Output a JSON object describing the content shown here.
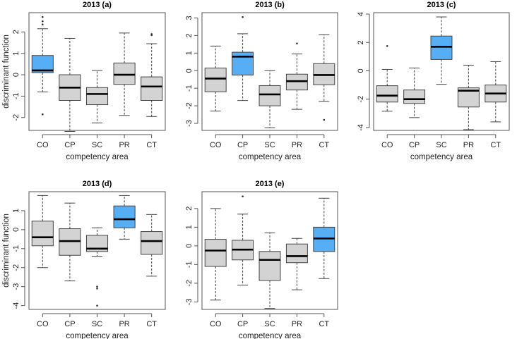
{
  "colors": {
    "highlight": "#56aef5",
    "default": "#d3d3d3",
    "stroke": "#444444"
  },
  "chart_data": [
    {
      "type": "boxplot",
      "title": "2013 (a)",
      "xlabel": "competency area",
      "ylabel": "discriminant function",
      "categories": [
        "CO",
        "CP",
        "SC",
        "PR",
        "CT"
      ],
      "ylim": [
        -2.6,
        2.9
      ],
      "yticks": [
        -2,
        -1,
        0,
        1,
        2
      ],
      "highlight": "CO",
      "boxes": [
        {
          "whislo": -0.8,
          "q1": 0.1,
          "med": 0.2,
          "q3": 0.9,
          "whishi": 2.15,
          "fliers": [
            2.7,
            2.5,
            2.35,
            -1.85
          ]
        },
        {
          "whislo": -2.65,
          "q1": -1.2,
          "med": -0.6,
          "q3": 0.0,
          "whishi": 1.7,
          "fliers": []
        },
        {
          "whislo": -2.25,
          "q1": -1.4,
          "med": -0.9,
          "q3": -0.6,
          "whishi": 0.2,
          "fliers": []
        },
        {
          "whislo": -1.9,
          "q1": -0.45,
          "med": 0.0,
          "q3": 0.55,
          "whishi": 1.95,
          "fliers": []
        },
        {
          "whislo": -1.95,
          "q1": -1.2,
          "med": -0.55,
          "q3": -0.1,
          "whishi": 1.45,
          "fliers": [
            1.9,
            1.85
          ]
        }
      ]
    },
    {
      "type": "boxplot",
      "title": "2013 (b)",
      "xlabel": "competency area",
      "ylabel": "",
      "categories": [
        "CO",
        "CP",
        "SC",
        "PR",
        "CT"
      ],
      "ylim": [
        -3.4,
        3.3
      ],
      "yticks": [
        -3,
        -2,
        -1,
        0,
        1,
        2,
        3
      ],
      "highlight": "CP",
      "boxes": [
        {
          "whislo": -2.3,
          "q1": -1.2,
          "med": -0.45,
          "q3": 0.15,
          "whishi": 1.4,
          "fliers": []
        },
        {
          "whislo": -1.7,
          "q1": -0.25,
          "med": 0.8,
          "q3": 1.05,
          "whishi": 2.1,
          "fliers": [
            3.05
          ]
        },
        {
          "whislo": -3.25,
          "q1": -2.0,
          "med": -1.35,
          "q3": -0.85,
          "whishi": 0.0,
          "fliers": []
        },
        {
          "whislo": -2.2,
          "q1": -1.1,
          "med": -0.6,
          "q3": -0.2,
          "whishi": 0.95,
          "fliers": [
            1.55
          ]
        },
        {
          "whislo": -1.75,
          "q1": -0.8,
          "med": -0.25,
          "q3": 0.4,
          "whishi": 2.05,
          "fliers": [
            -2.8
          ]
        }
      ]
    },
    {
      "type": "boxplot",
      "title": "2013 (c)",
      "xlabel": "competency area",
      "ylabel": "",
      "categories": [
        "CO",
        "CP",
        "SC",
        "PR",
        "CT"
      ],
      "ylim": [
        -4.2,
        4.1
      ],
      "yticks": [
        -4,
        -2,
        0,
        2,
        4
      ],
      "highlight": "SC",
      "boxes": [
        {
          "whislo": -2.85,
          "q1": -2.2,
          "med": -1.75,
          "q3": -1.05,
          "whishi": 0.1,
          "fliers": [
            1.75
          ]
        },
        {
          "whislo": -3.3,
          "q1": -2.3,
          "med": -2.0,
          "q3": -1.35,
          "whishi": 0.2,
          "fliers": []
        },
        {
          "whislo": -0.95,
          "q1": 0.8,
          "med": 1.7,
          "q3": 2.45,
          "whishi": 3.8,
          "fliers": []
        },
        {
          "whislo": -4.15,
          "q1": -2.55,
          "med": -1.4,
          "q3": -1.2,
          "whishi": 0.4,
          "fliers": []
        },
        {
          "whislo": -3.6,
          "q1": -2.2,
          "med": -1.6,
          "q3": -1.0,
          "whishi": 0.65,
          "fliers": []
        }
      ]
    },
    {
      "type": "boxplot",
      "title": "2013 (d)",
      "xlabel": "competency area",
      "ylabel": "discriminant function",
      "categories": [
        "CO",
        "CP",
        "SC",
        "PR",
        "CT"
      ],
      "ylim": [
        -4.2,
        2.0
      ],
      "yticks": [
        -4,
        -3,
        -2,
        -1,
        0,
        1
      ],
      "highlight": "PR",
      "boxes": [
        {
          "whislo": -2.0,
          "q1": -0.85,
          "med": -0.4,
          "q3": 0.45,
          "whishi": 1.8,
          "fliers": []
        },
        {
          "whislo": -2.7,
          "q1": -1.35,
          "med": -0.6,
          "q3": 0.05,
          "whishi": 1.4,
          "fliers": []
        },
        {
          "whislo": -1.4,
          "q1": -1.15,
          "med": -1.0,
          "q3": -0.3,
          "whishi": 0.1,
          "fliers": [
            -3.0,
            -3.1,
            -4.0
          ]
        },
        {
          "whislo": -0.5,
          "q1": 0.1,
          "med": 0.55,
          "q3": 1.25,
          "whishi": 1.8,
          "fliers": []
        },
        {
          "whislo": -2.45,
          "q1": -1.3,
          "med": -0.6,
          "q3": -0.1,
          "whishi": 0.8,
          "fliers": []
        }
      ]
    },
    {
      "type": "boxplot",
      "title": "2013 (e)",
      "xlabel": "competency area",
      "ylabel": "",
      "categories": [
        "CO",
        "CP",
        "SC",
        "PR",
        "CT"
      ],
      "ylim": [
        -3.4,
        2.9
      ],
      "yticks": [
        -3,
        -2,
        -1,
        0,
        1,
        2
      ],
      "highlight": "CT",
      "boxes": [
        {
          "whislo": -2.9,
          "q1": -1.1,
          "med": -0.25,
          "q3": 0.35,
          "whishi": 2.0,
          "fliers": []
        },
        {
          "whislo": -2.1,
          "q1": -0.75,
          "med": -0.2,
          "q3": 0.3,
          "whishi": 1.7,
          "fliers": [
            2.65
          ]
        },
        {
          "whislo": -3.35,
          "q1": -1.85,
          "med": -0.75,
          "q3": -0.3,
          "whishi": 0.7,
          "fliers": []
        },
        {
          "whislo": -2.35,
          "q1": -0.9,
          "med": -0.55,
          "q3": 0.1,
          "whishi": 0.4,
          "fliers": []
        },
        {
          "whislo": -1.75,
          "q1": -0.3,
          "med": 0.4,
          "q3": 1.0,
          "whishi": 2.55,
          "fliers": []
        }
      ]
    }
  ]
}
